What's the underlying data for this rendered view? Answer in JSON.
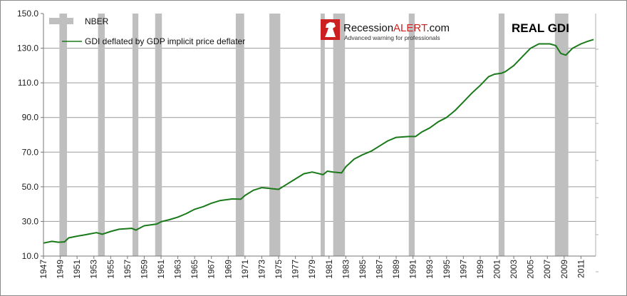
{
  "chart_data": {
    "type": "line",
    "title": "REAL GDI",
    "xlabel": "",
    "ylabel": "",
    "xlim": [
      1947,
      2012.75
    ],
    "ylim": [
      10,
      150
    ],
    "y_ticks": [
      "10.0",
      "30.0",
      "50.0",
      "70.0",
      "90.0",
      "110.0",
      "130.0",
      "150.0"
    ],
    "x_ticks": [
      "1947",
      "1949",
      "1951",
      "1953",
      "1955",
      "1957",
      "1959",
      "1961",
      "1963",
      "1965",
      "1967",
      "1969",
      "1971",
      "1973",
      "1975",
      "1977",
      "1979",
      "1981",
      "1983",
      "1985",
      "1987",
      "1989",
      "1991",
      "1993",
      "1995",
      "1997",
      "1999",
      "2001",
      "2003",
      "2005",
      "2007",
      "2009",
      "2011"
    ],
    "grid": true,
    "legend": {
      "placement": "top-left",
      "entries": [
        {
          "label": "NBER",
          "color": "#bfbfbf"
        },
        {
          "label": "GDI deflated by GDP implicit price deflater",
          "color": "#1a7a1a"
        }
      ]
    },
    "series": [
      {
        "name": "GDI deflated by GDP implicit price deflater",
        "color": "#1a7a1a",
        "x": [
          1947.0,
          1948.0,
          1948.8,
          1949.5,
          1950.0,
          1951.0,
          1952.0,
          1953.3,
          1954.0,
          1955.0,
          1956.0,
          1957.5,
          1958.0,
          1959.0,
          1960.5,
          1961.0,
          1962.0,
          1963.0,
          1964.0,
          1965.0,
          1966.0,
          1967.0,
          1968.0,
          1969.5,
          1970.5,
          1971.0,
          1972.0,
          1973.0,
          1974.0,
          1975.0,
          1976.0,
          1977.0,
          1978.0,
          1979.0,
          1980.3,
          1980.8,
          1981.5,
          1982.5,
          1983.0,
          1984.0,
          1985.0,
          1986.0,
          1987.0,
          1988.0,
          1989.0,
          1990.5,
          1991.3,
          1992.0,
          1993.0,
          1994.0,
          1995.0,
          1996.0,
          1997.0,
          1998.0,
          1999.0,
          2000.0,
          2000.7,
          2001.5,
          2002.0,
          2003.0,
          2004.0,
          2005.0,
          2006.0,
          2007.3,
          2008.0,
          2008.6,
          2009.2,
          2010.0,
          2011.0,
          2011.8,
          2012.5
        ],
        "values": [
          17.5,
          18.5,
          18.0,
          18.2,
          20.5,
          21.5,
          22.3,
          23.5,
          22.6,
          24.2,
          25.5,
          26.0,
          25.0,
          27.5,
          28.5,
          29.8,
          31.0,
          32.5,
          34.5,
          37.0,
          38.5,
          40.5,
          42.0,
          43.0,
          42.8,
          45.0,
          48.0,
          49.5,
          49.0,
          48.5,
          51.5,
          54.5,
          57.5,
          58.5,
          57.0,
          59.0,
          58.5,
          58.0,
          61.5,
          66.0,
          68.5,
          70.5,
          73.5,
          76.5,
          78.5,
          79.0,
          79.0,
          81.5,
          84.0,
          87.5,
          90.0,
          94.0,
          99.0,
          104.0,
          108.5,
          113.5,
          115.0,
          115.5,
          116.5,
          120.0,
          125.0,
          130.0,
          132.5,
          132.5,
          131.5,
          127.0,
          126.0,
          130.0,
          132.5,
          134.0,
          135.0
        ]
      }
    ],
    "recessions": [
      [
        1948.9,
        1949.8
      ],
      [
        1953.5,
        1954.3
      ],
      [
        1957.6,
        1958.3
      ],
      [
        1960.3,
        1961.1
      ],
      [
        1969.9,
        1970.9
      ],
      [
        1973.9,
        1975.2
      ],
      [
        1980.0,
        1980.5
      ],
      [
        1981.5,
        1982.9
      ],
      [
        1990.5,
        1991.2
      ],
      [
        2001.2,
        2001.9
      ],
      [
        2007.9,
        2009.5
      ]
    ]
  },
  "brand": {
    "name_part1": "Recession",
    "name_part2": "ALERT",
    "name_part3": ".com",
    "tagline": "Advanced warning for professionals",
    "accent_color": "#cc1f1f",
    "logo_icon": "knight-chess-icon"
  }
}
